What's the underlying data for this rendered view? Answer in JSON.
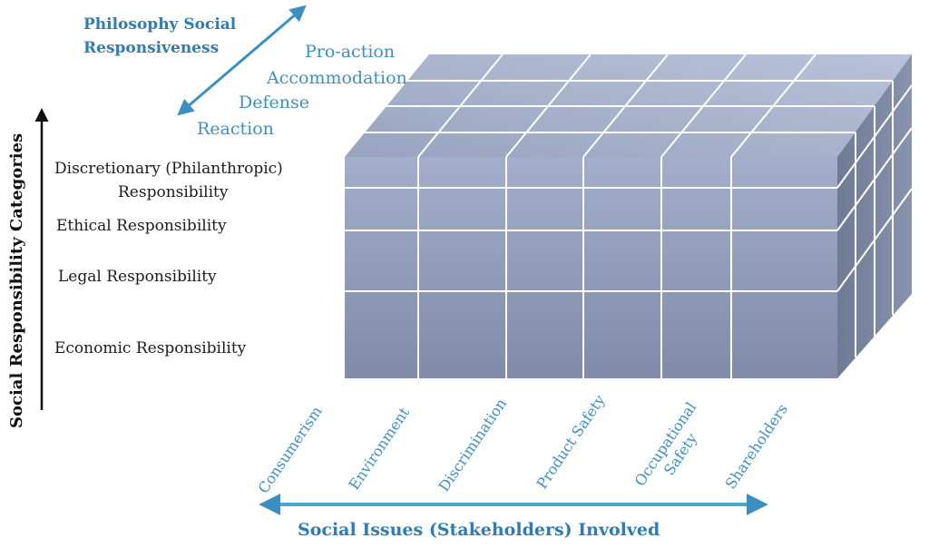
{
  "philosophy_title": [
    "Philosophy Social",
    "Responsiveness"
  ],
  "responsiveness_levels": [
    "Pro-action",
    "Accommodation",
    "Defense",
    "Reaction"
  ],
  "categories_axis_title": "Social Responsibility Categories",
  "categories": [
    [
      "Discretionary (Philanthropic)",
      "Responsibility"
    ],
    [
      "Ethical Responsibility"
    ],
    [
      "Legal Responsibility"
    ],
    [
      "Economic Responsibility"
    ]
  ],
  "issues_axis_title": "Social Issues (Stakeholders) Involved",
  "issues": [
    [
      "Consumerism"
    ],
    [
      "Environment"
    ],
    [
      "Discrimination"
    ],
    [
      "Product  Safety"
    ],
    [
      "Occupational",
      "Safety"
    ],
    [
      "Shareholders"
    ]
  ],
  "colors": {
    "arrow_blue": "#3a8fc0",
    "front_face_top": "#9aa6c2",
    "front_face_bottom": "#7e8aa6",
    "top_face": "#a9b4cd",
    "side_face": "#6d7893",
    "grid_line": "#ffffff"
  }
}
